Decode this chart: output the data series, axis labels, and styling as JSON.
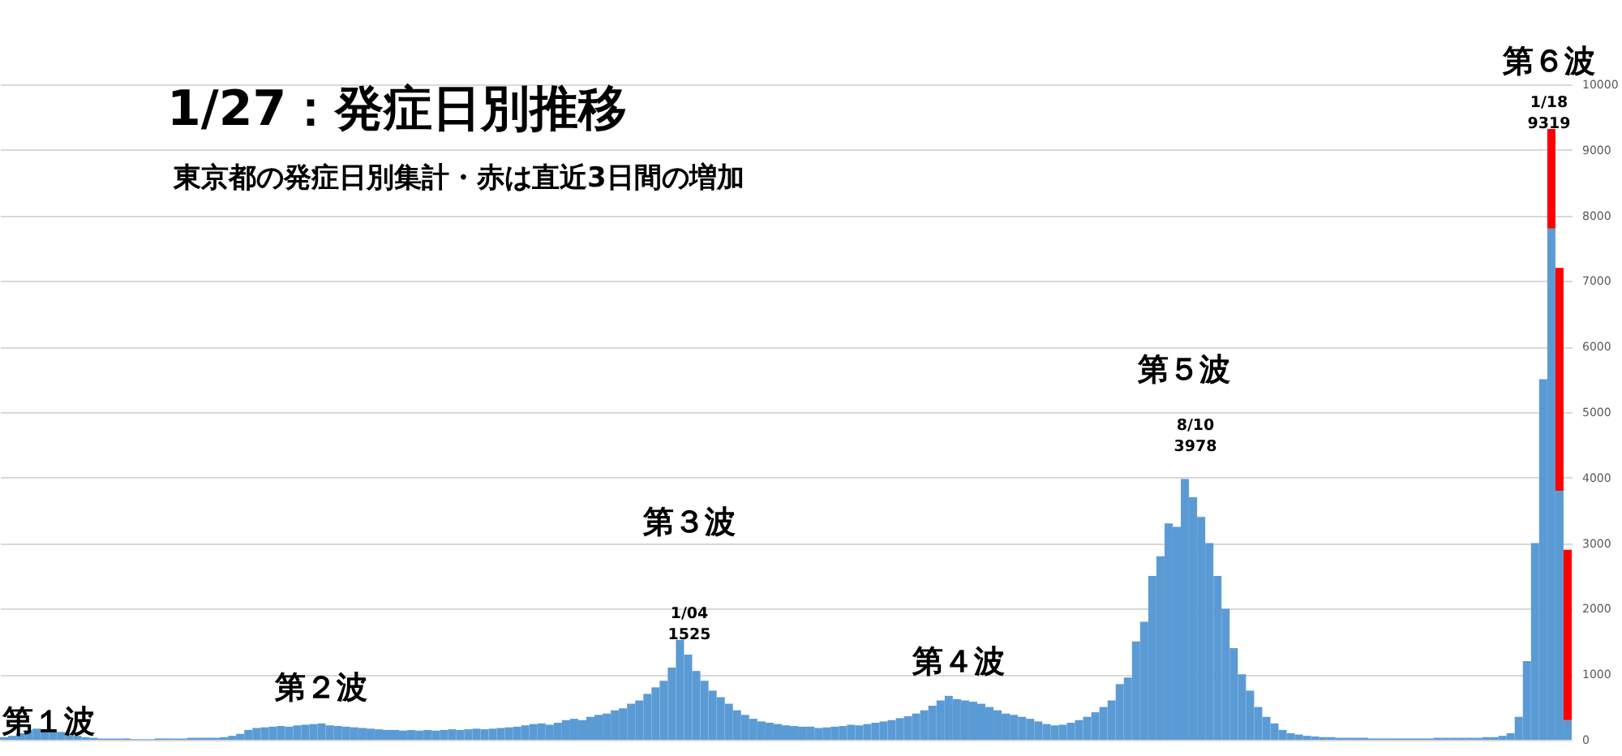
{
  "chart_data": {
    "type": "bar",
    "title": "1/27：発症日別推移",
    "subtitle": "東京都の発症日別集計・赤は直近3日間の増加",
    "categories": [
      null,
      null,
      null,
      null,
      null,
      null,
      null,
      null,
      null,
      null,
      null,
      null,
      null,
      null,
      null,
      null,
      null,
      null,
      null,
      null,
      null,
      null,
      null,
      null,
      null,
      null,
      null,
      null,
      null,
      null,
      null,
      null,
      null,
      null,
      null,
      null,
      null,
      null,
      null,
      null,
      null,
      null,
      null,
      null,
      null,
      null,
      null,
      null,
      null,
      null,
      null,
      null,
      null,
      null,
      null,
      null,
      null,
      null,
      null,
      null,
      null,
      null,
      null,
      null,
      null,
      null,
      null,
      null,
      null,
      null,
      null,
      null,
      null,
      null,
      null,
      null,
      null,
      null,
      null,
      null,
      null,
      null,
      null,
      null,
      null,
      null,
      null,
      null,
      null,
      null,
      null,
      null,
      null,
      null,
      null,
      null,
      null,
      null,
      null,
      null,
      null,
      null,
      null,
      null,
      null,
      null,
      null,
      null,
      null,
      null,
      null,
      null,
      null,
      null,
      null,
      null,
      null,
      null,
      null,
      null,
      null,
      null,
      null,
      null,
      null,
      null,
      null,
      null,
      null,
      null,
      null,
      null,
      null,
      null,
      null,
      null,
      null,
      null,
      null,
      null,
      null,
      null,
      null,
      null,
      null,
      null,
      null,
      null,
      null,
      null,
      null,
      null,
      null,
      null,
      null,
      null,
      null,
      null,
      null,
      null,
      null,
      null,
      null,
      null,
      null,
      null,
      null,
      null,
      null,
      null,
      null,
      null,
      null,
      null,
      null,
      null,
      null,
      null,
      null,
      null,
      null,
      null,
      null,
      null,
      null,
      null,
      null,
      null,
      null,
      null,
      null,
      null,
      null
    ],
    "series": [
      {
        "color": "#5b9bd5",
        "values": [
          40,
          60,
          100,
          150,
          170,
          160,
          140,
          120,
          90,
          60,
          40,
          30,
          20,
          20,
          20,
          20,
          10,
          10,
          10,
          20,
          20,
          20,
          20,
          30,
          30,
          30,
          30,
          40,
          60,
          90,
          150,
          180,
          190,
          200,
          210,
          200,
          220,
          230,
          240,
          250,
          220,
          210,
          200,
          190,
          180,
          170,
          160,
          150,
          150,
          140,
          150,
          140,
          150,
          140,
          150,
          160,
          150,
          160,
          170,
          160,
          170,
          180,
          190,
          200,
          220,
          240,
          250,
          230,
          260,
          300,
          320,
          300,
          350,
          380,
          400,
          450,
          480,
          550,
          600,
          700,
          800,
          900,
          1100,
          1525,
          1300,
          1050,
          900,
          750,
          650,
          550,
          450,
          380,
          320,
          280,
          260,
          240,
          220,
          210,
          200,
          200,
          180,
          190,
          200,
          210,
          230,
          220,
          240,
          260,
          280,
          300,
          330,
          360,
          400,
          450,
          520,
          600,
          670,
          620,
          600,
          580,
          550,
          500,
          450,
          400,
          380,
          350,
          320,
          280,
          240,
          220,
          230,
          260,
          300,
          350,
          420,
          500,
          600,
          850,
          950,
          1500,
          1800,
          2500,
          2800,
          3300,
          3250,
          3978,
          3700,
          3400,
          3000,
          2500,
          2000,
          1400,
          1000,
          750,
          500,
          350,
          250,
          150,
          100,
          80,
          60,
          50,
          40,
          40,
          30,
          30,
          30,
          30,
          20,
          20,
          20,
          20,
          20,
          20,
          20,
          20,
          30,
          30,
          30,
          30,
          30,
          30,
          40,
          40,
          60,
          100,
          350,
          1200,
          3000,
          5500,
          7800,
          3800,
          300
        ]
      },
      {
        "color": "#ff0000",
        "values": [
          0,
          0,
          0,
          0,
          0,
          0,
          0,
          0,
          0,
          0,
          0,
          0,
          0,
          0,
          0,
          0,
          0,
          0,
          0,
          0,
          0,
          0,
          0,
          0,
          0,
          0,
          0,
          0,
          0,
          0,
          0,
          0,
          0,
          0,
          0,
          0,
          0,
          0,
          0,
          0,
          0,
          0,
          0,
          0,
          0,
          0,
          0,
          0,
          0,
          0,
          0,
          0,
          0,
          0,
          0,
          0,
          0,
          0,
          0,
          0,
          0,
          0,
          0,
          0,
          0,
          0,
          0,
          0,
          0,
          0,
          0,
          0,
          0,
          0,
          0,
          0,
          0,
          0,
          0,
          0,
          0,
          0,
          0,
          0,
          0,
          0,
          0,
          0,
          0,
          0,
          0,
          0,
          0,
          0,
          0,
          0,
          0,
          0,
          0,
          0,
          0,
          0,
          0,
          0,
          0,
          0,
          0,
          0,
          0,
          0,
          0,
          0,
          0,
          0,
          0,
          0,
          0,
          0,
          0,
          0,
          0,
          0,
          0,
          0,
          0,
          0,
          0,
          0,
          0,
          0,
          0,
          0,
          0,
          0,
          0,
          0,
          0,
          0,
          0,
          0,
          0,
          0,
          0,
          0,
          0,
          0,
          0,
          0,
          0,
          0,
          0,
          0,
          0,
          0,
          0,
          0,
          0,
          0,
          0,
          0,
          0,
          0,
          0,
          0,
          0,
          0,
          0,
          0,
          0,
          0,
          0,
          0,
          0,
          0,
          0,
          0,
          0,
          0,
          0,
          0,
          0,
          0,
          0,
          0,
          0,
          0,
          0,
          0,
          0,
          0,
          1520,
          3400,
          2600
        ]
      }
    ],
    "stacked": true,
    "ylim": [
      0,
      10000
    ],
    "yticks": [
      0,
      1000,
      2000,
      3000,
      4000,
      5000,
      6000,
      7000,
      8000,
      9000,
      10000
    ],
    "grid": "y",
    "tick_labels": "y",
    "annotations": [
      "第１波",
      "第２波",
      "第３波",
      "1/04\n1525",
      "第４波",
      "第５波",
      "8/10\n3978",
      "第６波",
      "1/18\n9319"
    ]
  }
}
